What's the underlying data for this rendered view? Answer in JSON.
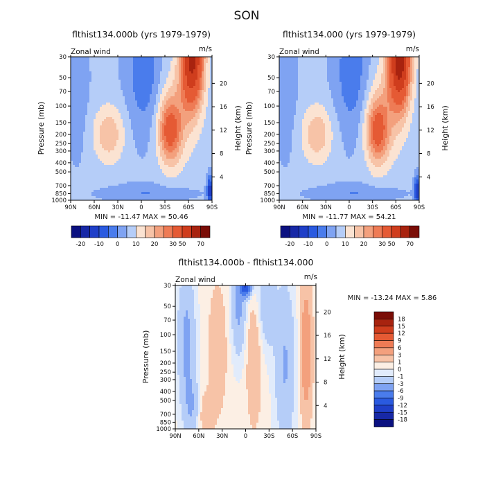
{
  "figure": {
    "title": "SON",
    "panels": [
      {
        "title": "flthist134.000b (yrs 1979-1979)",
        "left_label": "Zonal wind",
        "right_label": "m/s",
        "ylabel": "Pressure (mb)",
        "ylabel_right": "Height (km)",
        "stats": "MIN = -11.47   MAX =  50.46"
      },
      {
        "title": "flthist134.000 (yrs 1979-1979)",
        "left_label": "Zonal wind",
        "right_label": "m/s",
        "ylabel": "Pressure (mb)",
        "ylabel_right": "Height (km)",
        "stats": "MIN = -11.77   MAX =  54.21"
      },
      {
        "title": "flthist134.000b - flthist134.000",
        "left_label": "Zonal wind",
        "right_label": "m/s",
        "ylabel": "Pressure (mb)",
        "ylabel_right": "Height (km)",
        "stats": "MIN = -13.24   MAX =   5.86"
      }
    ]
  },
  "chart_data": [
    {
      "type": "heatmap",
      "title": "flthist134.000b (yrs 1979-1979)",
      "variable": "Zonal wind",
      "units": "m/s",
      "xlabel": "",
      "ylabel": "Pressure (mb)",
      "ylabel_right": "Height (km)",
      "x_ticks": [
        "90N",
        "60N",
        "30N",
        "0",
        "30S",
        "60S",
        "90S"
      ],
      "xlim": [
        90,
        -90
      ],
      "y_ticks": [
        30,
        50,
        70,
        100,
        150,
        200,
        250,
        300,
        400,
        500,
        700,
        850,
        1000
      ],
      "ylim": [
        1000,
        30
      ],
      "y_right_ticks": [
        4,
        8,
        12,
        16,
        20
      ],
      "min": -11.47,
      "max": 50.46,
      "levels": [
        -20,
        -15,
        -10,
        -5,
        0,
        5,
        10,
        15,
        20,
        25,
        30,
        40,
        50,
        60,
        70
      ],
      "colorbar_labels": [
        "-20",
        "-10",
        "0",
        "10",
        "20",
        "30",
        "50",
        "70"
      ],
      "features": [
        {
          "lat": -55,
          "p": 30,
          "u": 50
        },
        {
          "lat": -40,
          "p": 200,
          "u": 30
        },
        {
          "lat": 38,
          "p": 200,
          "u": 18
        },
        {
          "lat": 5,
          "p": 55,
          "u": -11
        }
      ]
    },
    {
      "type": "heatmap",
      "title": "flthist134.000 (yrs 1979-1979)",
      "variable": "Zonal wind",
      "units": "m/s",
      "xlabel": "",
      "ylabel": "Pressure (mb)",
      "ylabel_right": "Height (km)",
      "x_ticks": [
        "90N",
        "60N",
        "30N",
        "0",
        "30S",
        "60S",
        "90S"
      ],
      "xlim": [
        90,
        -90
      ],
      "y_ticks": [
        30,
        50,
        70,
        100,
        150,
        200,
        250,
        300,
        400,
        500,
        700,
        850,
        1000
      ],
      "ylim": [
        1000,
        30
      ],
      "y_right_ticks": [
        4,
        8,
        12,
        16,
        20
      ],
      "min": -11.77,
      "max": 54.21,
      "levels": [
        -20,
        -15,
        -10,
        -5,
        0,
        5,
        10,
        15,
        20,
        25,
        30,
        40,
        50,
        60,
        70
      ],
      "colorbar_labels": [
        "-20",
        "-10",
        "0",
        "10",
        "20",
        "30",
        "50",
        "70"
      ],
      "features": [
        {
          "lat": -58,
          "p": 30,
          "u": 54
        },
        {
          "lat": -40,
          "p": 200,
          "u": 30
        },
        {
          "lat": 38,
          "p": 200,
          "u": 15
        },
        {
          "lat": 5,
          "p": 55,
          "u": -11
        }
      ]
    },
    {
      "type": "heatmap",
      "title": "flthist134.000b - flthist134.000",
      "variable": "Zonal wind",
      "units": "m/s",
      "xlabel": "",
      "ylabel": "Pressure (mb)",
      "ylabel_right": "Height (km)",
      "x_ticks": [
        "90N",
        "60N",
        "30N",
        "0",
        "30S",
        "60S",
        "90S"
      ],
      "xlim": [
        90,
        -90
      ],
      "y_ticks": [
        30,
        50,
        70,
        100,
        150,
        200,
        250,
        300,
        400,
        500,
        700,
        850,
        1000
      ],
      "ylim": [
        1000,
        30
      ],
      "y_right_ticks": [
        4,
        8,
        12,
        16,
        20
      ],
      "min": -13.24,
      "max": 5.86,
      "levels": [
        -18,
        -15,
        -12,
        -9,
        -6,
        -3,
        -1,
        0,
        1,
        3,
        6,
        9,
        12,
        15,
        18
      ],
      "colorbar_labels": [
        "18",
        "15",
        "12",
        "9",
        "6",
        "3",
        "1",
        "0",
        "-1",
        "-3",
        "-6",
        "-9",
        "-12",
        "-15",
        "-18"
      ],
      "features": [
        {
          "lat": 0,
          "p": 35,
          "u": -13
        },
        {
          "lat": -68,
          "p": 200,
          "u": 5
        },
        {
          "lat": 15,
          "p": 60,
          "u": -4
        },
        {
          "lat": -45,
          "p": 60,
          "u": -3
        }
      ]
    }
  ],
  "colors": {
    "sequential_15": [
      "#0b1180",
      "#1728a6",
      "#1f3fc8",
      "#2a5ae0",
      "#4a7cec",
      "#7fa3f2",
      "#b5cdf8",
      "#fbe3d2",
      "#f7c3a7",
      "#f3a07d",
      "#ee7b55",
      "#e55a34",
      "#cf3d1d",
      "#a8230f",
      "#7a0d06"
    ],
    "diff_16": [
      "#0b1180",
      "#1728a6",
      "#1f3fc8",
      "#2a5ae0",
      "#4a7cec",
      "#7fa3f2",
      "#b5cdf8",
      "#e1ebfb",
      "#fcefe4",
      "#f7c3a7",
      "#f3a07d",
      "#ee7b55",
      "#e55a34",
      "#cf3d1d",
      "#a8230f",
      "#7a0d06"
    ]
  }
}
